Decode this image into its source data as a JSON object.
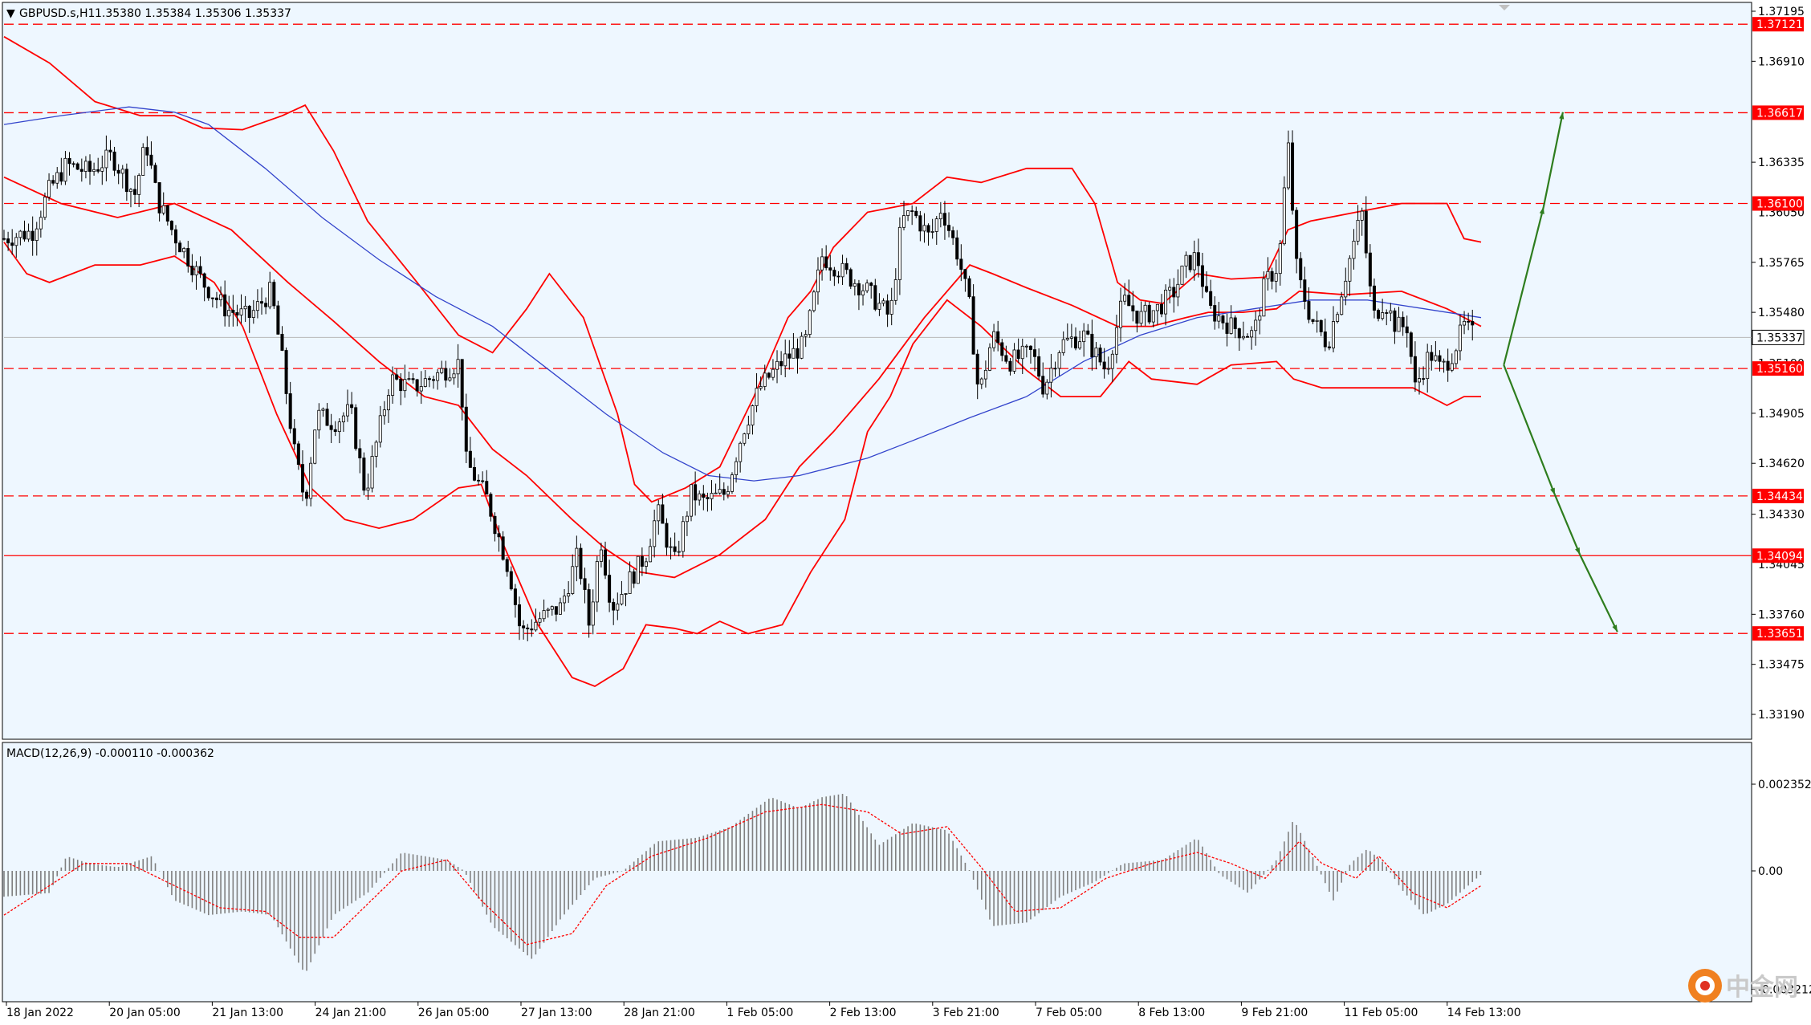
{
  "header": {
    "symbol": "GBPUSD.s,H1",
    "ohlc": "1.35380 1.35384 1.35306 1.35337",
    "macd_label": "MACD(12,26,9) -0.000110 -0.000362"
  },
  "watermark": {
    "text": "中金网"
  },
  "colors": {
    "background": "#eef7ff",
    "red": "#ff0000",
    "blue": "#3344cc",
    "green": "#2e7d1e",
    "candle": "#000000",
    "macd_bar": "#808080"
  },
  "chart_data": [
    {
      "type": "candlestick",
      "symbol": "GBPUSD.s",
      "timeframe": "H1",
      "ylim": [
        1.3319,
        1.3719
      ],
      "y_ticks": [
        "1.37195",
        "1.36910",
        "1.36335",
        "1.35765",
        "1.35480",
        "1.34905",
        "1.34620",
        "1.34330",
        "1.33760",
        "1.33475",
        "1.33190"
      ],
      "overlapped_ticks": [
        "1.36050",
        "1.35190",
        "1.34045"
      ],
      "x_ticks": [
        "18 Jan 2022",
        "20 Jan 05:00",
        "21 Jan 13:00",
        "24 Jan 21:00",
        "26 Jan 05:00",
        "27 Jan 13:00",
        "28 Jan 21:00",
        "1 Feb 05:00",
        "2 Feb 13:00",
        "3 Feb 21:00",
        "7 Feb 05:00",
        "8 Feb 13:00",
        "9 Feb 21:00",
        "11 Feb 05:00",
        "14 Feb 13:00"
      ],
      "current_price": "1.35337",
      "price_levels": [
        {
          "value": "1.37121",
          "style": "dashed"
        },
        {
          "value": "1.36617",
          "style": "dashed"
        },
        {
          "value": "1.36100",
          "style": "dashed"
        },
        {
          "value": "1.35160",
          "style": "dashed"
        },
        {
          "value": "1.34434",
          "style": "dashed"
        },
        {
          "value": "1.34094",
          "style": "solid"
        },
        {
          "value": "1.33651",
          "style": "dashed"
        }
      ],
      "price_path": [
        [
          0,
          1.359
        ],
        [
          25,
          1.3594
        ],
        [
          40,
          1.3618
        ],
        [
          55,
          1.3632
        ],
        [
          75,
          1.3628
        ],
        [
          95,
          1.3637
        ],
        [
          115,
          1.3615
        ],
        [
          125,
          1.3645
        ],
        [
          135,
          1.3612
        ],
        [
          150,
          1.3592
        ],
        [
          175,
          1.3565
        ],
        [
          195,
          1.355
        ],
        [
          215,
          1.3545
        ],
        [
          235,
          1.356
        ],
        [
          245,
          1.352
        ],
        [
          255,
          1.347
        ],
        [
          265,
          1.344
        ],
        [
          275,
          1.349
        ],
        [
          290,
          1.3485
        ],
        [
          305,
          1.3492
        ],
        [
          318,
          1.3445
        ],
        [
          330,
          1.348
        ],
        [
          340,
          1.351
        ],
        [
          360,
          1.3505
        ],
        [
          385,
          1.3514
        ],
        [
          402,
          1.352
        ],
        [
          405,
          1.3465
        ],
        [
          425,
          1.3442
        ],
        [
          445,
          1.34
        ],
        [
          455,
          1.3365
        ],
        [
          470,
          1.3373
        ],
        [
          490,
          1.338
        ],
        [
          505,
          1.341
        ],
        [
          515,
          1.337
        ],
        [
          525,
          1.342
        ],
        [
          535,
          1.338
        ],
        [
          550,
          1.3395
        ],
        [
          565,
          1.341
        ],
        [
          575,
          1.3435
        ],
        [
          590,
          1.3405
        ],
        [
          605,
          1.3445
        ],
        [
          615,
          1.344
        ],
        [
          635,
          1.3445
        ],
        [
          650,
          1.348
        ],
        [
          665,
          1.3505
        ],
        [
          685,
          1.352
        ],
        [
          705,
          1.353
        ],
        [
          720,
          1.358
        ],
        [
          740,
          1.357
        ],
        [
          760,
          1.356
        ],
        [
          780,
          1.3545
        ],
        [
          790,
          1.36
        ],
        [
          800,
          1.3605
        ],
        [
          815,
          1.359
        ],
        [
          825,
          1.3608
        ],
        [
          840,
          1.358
        ],
        [
          850,
          1.355
        ],
        [
          858,
          1.35
        ],
        [
          870,
          1.3535
        ],
        [
          885,
          1.352
        ],
        [
          905,
          1.3525
        ],
        [
          915,
          1.3505
        ],
        [
          930,
          1.353
        ],
        [
          950,
          1.3535
        ],
        [
          970,
          1.3515
        ],
        [
          985,
          1.3555
        ],
        [
          1000,
          1.3545
        ],
        [
          1015,
          1.355
        ],
        [
          1030,
          1.356
        ],
        [
          1040,
          1.3575
        ],
        [
          1050,
          1.358
        ],
        [
          1060,
          1.355
        ],
        [
          1080,
          1.354
        ],
        [
          1100,
          1.3535
        ],
        [
          1110,
          1.3565
        ],
        [
          1122,
          1.3575
        ],
        [
          1130,
          1.3645
        ],
        [
          1138,
          1.357
        ],
        [
          1150,
          1.3545
        ],
        [
          1165,
          1.353
        ],
        [
          1175,
          1.3555
        ],
        [
          1185,
          1.358
        ],
        [
          1195,
          1.3605
        ],
        [
          1205,
          1.3545
        ],
        [
          1215,
          1.3555
        ],
        [
          1225,
          1.354
        ],
        [
          1235,
          1.354
        ],
        [
          1242,
          1.3505
        ],
        [
          1255,
          1.3525
        ],
        [
          1265,
          1.3515
        ],
        [
          1275,
          1.3525
        ],
        [
          1285,
          1.354
        ],
        [
          1295,
          1.3534
        ]
      ]
    },
    {
      "type": "macd",
      "params": "12,26,9",
      "main": -0.00011,
      "signal": -0.000362,
      "ylim": [
        -0.0032,
        0.0024
      ],
      "y_ticks": [
        "0.002352",
        "0.00",
        "-0.003212"
      ],
      "hist_path": [
        [
          0,
          -0.0007
        ],
        [
          40,
          -0.0006
        ],
        [
          55,
          0.0004
        ],
        [
          75,
          0.0002
        ],
        [
          100,
          0.0001
        ],
        [
          130,
          0.0004
        ],
        [
          150,
          -0.0008
        ],
        [
          180,
          -0.0012
        ],
        [
          210,
          -0.0011
        ],
        [
          235,
          -0.0012
        ],
        [
          265,
          -0.0028
        ],
        [
          290,
          -0.0012
        ],
        [
          320,
          -0.0006
        ],
        [
          350,
          0.0005
        ],
        [
          390,
          0.0003
        ],
        [
          405,
          0.0
        ],
        [
          430,
          -0.0015
        ],
        [
          465,
          -0.0024
        ],
        [
          490,
          -0.0013
        ],
        [
          520,
          -0.0002
        ],
        [
          545,
          0.0
        ],
        [
          575,
          0.0008
        ],
        [
          610,
          0.0009
        ],
        [
          640,
          0.0012
        ],
        [
          675,
          0.002
        ],
        [
          700,
          0.0017
        ],
        [
          720,
          0.002
        ],
        [
          740,
          0.0021
        ],
        [
          770,
          0.0007
        ],
        [
          800,
          0.0013
        ],
        [
          830,
          0.0011
        ],
        [
          850,
          0.0
        ],
        [
          870,
          -0.0015
        ],
        [
          900,
          -0.0014
        ],
        [
          930,
          -0.0007
        ],
        [
          960,
          -0.0003
        ],
        [
          985,
          0.0002
        ],
        [
          1020,
          0.0003
        ],
        [
          1050,
          0.0009
        ],
        [
          1070,
          -0.0001
        ],
        [
          1095,
          -0.0006
        ],
        [
          1120,
          0.0003
        ],
        [
          1135,
          0.0014
        ],
        [
          1150,
          0.0005
        ],
        [
          1170,
          -0.0008
        ],
        [
          1185,
          0.0002
        ],
        [
          1200,
          0.0006
        ],
        [
          1215,
          0.0002
        ],
        [
          1230,
          -0.0005
        ],
        [
          1250,
          -0.0012
        ],
        [
          1270,
          -0.0009
        ],
        [
          1300,
          -0.0001
        ]
      ],
      "signal_path": [
        [
          0,
          -0.0012
        ],
        [
          40,
          -0.0004
        ],
        [
          70,
          0.0002
        ],
        [
          110,
          0.0002
        ],
        [
          150,
          -0.0004
        ],
        [
          190,
          -0.001
        ],
        [
          230,
          -0.0011
        ],
        [
          260,
          -0.0018
        ],
        [
          290,
          -0.0018
        ],
        [
          320,
          -0.0009
        ],
        [
          350,
          0.0
        ],
        [
          390,
          0.0003
        ],
        [
          420,
          -0.0008
        ],
        [
          460,
          -0.002
        ],
        [
          500,
          -0.0017
        ],
        [
          530,
          -0.0004
        ],
        [
          570,
          0.0004
        ],
        [
          620,
          0.0009
        ],
        [
          670,
          0.0016
        ],
        [
          720,
          0.0018
        ],
        [
          760,
          0.0016
        ],
        [
          790,
          0.001
        ],
        [
          830,
          0.0012
        ],
        [
          860,
          0.0001
        ],
        [
          890,
          -0.0011
        ],
        [
          930,
          -0.001
        ],
        [
          970,
          -0.0002
        ],
        [
          1010,
          0.0002
        ],
        [
          1050,
          0.0005
        ],
        [
          1080,
          0.0002
        ],
        [
          1110,
          -0.0002
        ],
        [
          1140,
          0.0008
        ],
        [
          1160,
          0.0002
        ],
        [
          1190,
          -0.0002
        ],
        [
          1210,
          0.0004
        ],
        [
          1240,
          -0.0006
        ],
        [
          1270,
          -0.001
        ],
        [
          1300,
          -0.0004
        ]
      ]
    }
  ],
  "overlays": {
    "bollinger_upper": [
      [
        0,
        1.3705
      ],
      [
        40,
        1.369
      ],
      [
        80,
        1.3668
      ],
      [
        120,
        1.366
      ],
      [
        150,
        1.366
      ],
      [
        175,
        1.3653
      ],
      [
        210,
        1.3652
      ],
      [
        245,
        1.366
      ],
      [
        265,
        1.3666
      ],
      [
        290,
        1.364
      ],
      [
        320,
        1.36
      ],
      [
        360,
        1.3568
      ],
      [
        400,
        1.3535
      ],
      [
        430,
        1.3525
      ],
      [
        460,
        1.355
      ],
      [
        480,
        1.357
      ],
      [
        510,
        1.3545
      ],
      [
        540,
        1.349
      ],
      [
        555,
        1.345
      ],
      [
        570,
        1.344
      ],
      [
        600,
        1.3448
      ],
      [
        630,
        1.346
      ],
      [
        660,
        1.35
      ],
      [
        690,
        1.3545
      ],
      [
        710,
        1.356
      ],
      [
        730,
        1.3585
      ],
      [
        760,
        1.3605
      ],
      [
        800,
        1.361
      ],
      [
        830,
        1.3625
      ],
      [
        860,
        1.3622
      ],
      [
        900,
        1.363
      ],
      [
        940,
        1.363
      ],
      [
        960,
        1.361
      ],
      [
        980,
        1.3565
      ],
      [
        1000,
        1.3555
      ],
      [
        1020,
        1.3553
      ],
      [
        1050,
        1.357
      ],
      [
        1080,
        1.3567
      ],
      [
        1110,
        1.3568
      ],
      [
        1130,
        1.3595
      ],
      [
        1150,
        1.36
      ],
      [
        1190,
        1.3605
      ],
      [
        1230,
        1.361
      ],
      [
        1270,
        1.361
      ],
      [
        1285,
        1.359
      ],
      [
        1300,
        1.3588
      ]
    ],
    "bollinger_middle": [
      [
        0,
        1.3625
      ],
      [
        50,
        1.361
      ],
      [
        100,
        1.3602
      ],
      [
        150,
        1.361
      ],
      [
        200,
        1.3595
      ],
      [
        250,
        1.3565
      ],
      [
        290,
        1.3543
      ],
      [
        330,
        1.352
      ],
      [
        370,
        1.35
      ],
      [
        400,
        1.3495
      ],
      [
        430,
        1.347
      ],
      [
        460,
        1.3455
      ],
      [
        500,
        1.343
      ],
      [
        530,
        1.3413
      ],
      [
        560,
        1.34
      ],
      [
        590,
        1.3397
      ],
      [
        630,
        1.341
      ],
      [
        670,
        1.343
      ],
      [
        700,
        1.346
      ],
      [
        730,
        1.348
      ],
      [
        770,
        1.351
      ],
      [
        810,
        1.3545
      ],
      [
        850,
        1.3575
      ],
      [
        870,
        1.357
      ],
      [
        900,
        1.3562
      ],
      [
        940,
        1.3552
      ],
      [
        980,
        1.354
      ],
      [
        1010,
        1.354
      ],
      [
        1040,
        1.3545
      ],
      [
        1060,
        1.3548
      ],
      [
        1090,
        1.3548
      ],
      [
        1120,
        1.355
      ],
      [
        1140,
        1.356
      ],
      [
        1180,
        1.3558
      ],
      [
        1230,
        1.356
      ],
      [
        1270,
        1.355
      ],
      [
        1300,
        1.354
      ]
    ],
    "bollinger_lower": [
      [
        0,
        1.3588
      ],
      [
        20,
        1.357
      ],
      [
        40,
        1.3565
      ],
      [
        80,
        1.3575
      ],
      [
        120,
        1.3575
      ],
      [
        150,
        1.358
      ],
      [
        185,
        1.3565
      ],
      [
        210,
        1.354
      ],
      [
        240,
        1.349
      ],
      [
        270,
        1.3448
      ],
      [
        300,
        1.343
      ],
      [
        330,
        1.3425
      ],
      [
        360,
        1.343
      ],
      [
        400,
        1.3448
      ],
      [
        420,
        1.345
      ],
      [
        440,
        1.3415
      ],
      [
        470,
        1.337
      ],
      [
        500,
        1.334
      ],
      [
        520,
        1.3335
      ],
      [
        545,
        1.3345
      ],
      [
        565,
        1.337
      ],
      [
        590,
        1.3368
      ],
      [
        610,
        1.3365
      ],
      [
        630,
        1.3372
      ],
      [
        655,
        1.3365
      ],
      [
        685,
        1.337
      ],
      [
        710,
        1.34
      ],
      [
        740,
        1.343
      ],
      [
        760,
        1.348
      ],
      [
        780,
        1.35
      ],
      [
        800,
        1.353
      ],
      [
        830,
        1.3555
      ],
      [
        860,
        1.354
      ],
      [
        900,
        1.3515
      ],
      [
        930,
        1.35
      ],
      [
        965,
        1.35
      ],
      [
        990,
        1.352
      ],
      [
        1010,
        1.351
      ],
      [
        1050,
        1.3507
      ],
      [
        1080,
        1.3518
      ],
      [
        1120,
        1.352
      ],
      [
        1135,
        1.351
      ],
      [
        1160,
        1.3505
      ],
      [
        1200,
        1.3505
      ],
      [
        1240,
        1.3505
      ],
      [
        1270,
        1.3495
      ],
      [
        1285,
        1.35
      ],
      [
        1300,
        1.35
      ]
    ],
    "moving_average": [
      [
        0,
        1.3655
      ],
      [
        50,
        1.366
      ],
      [
        110,
        1.3665
      ],
      [
        150,
        1.3662
      ],
      [
        180,
        1.3655
      ],
      [
        230,
        1.363
      ],
      [
        280,
        1.3602
      ],
      [
        330,
        1.3578
      ],
      [
        380,
        1.3557
      ],
      [
        430,
        1.354
      ],
      [
        480,
        1.3515
      ],
      [
        530,
        1.349
      ],
      [
        580,
        1.3468
      ],
      [
        620,
        1.3455
      ],
      [
        660,
        1.3452
      ],
      [
        700,
        1.3455
      ],
      [
        760,
        1.3465
      ],
      [
        800,
        1.3475
      ],
      [
        850,
        1.3488
      ],
      [
        900,
        1.35
      ],
      [
        950,
        1.352
      ],
      [
        1000,
        1.3535
      ],
      [
        1050,
        1.3545
      ],
      [
        1100,
        1.355
      ],
      [
        1150,
        1.3555
      ],
      [
        1200,
        1.3555
      ],
      [
        1250,
        1.355
      ],
      [
        1300,
        1.3545
      ]
    ],
    "arrows": [
      {
        "from": [
          1320,
          1.3518
        ],
        "to": [
          1355,
          1.3608
        ]
      },
      {
        "from": [
          1355,
          1.3608
        ],
        "to": [
          1372,
          1.3662
        ]
      },
      {
        "from": [
          1320,
          1.3518
        ],
        "to": [
          1365,
          1.3444
        ]
      },
      {
        "from": [
          1365,
          1.3444
        ],
        "to": [
          1387,
          1.341
        ]
      },
      {
        "from": [
          1387,
          1.341
        ],
        "to": [
          1420,
          1.3366
        ]
      }
    ]
  }
}
